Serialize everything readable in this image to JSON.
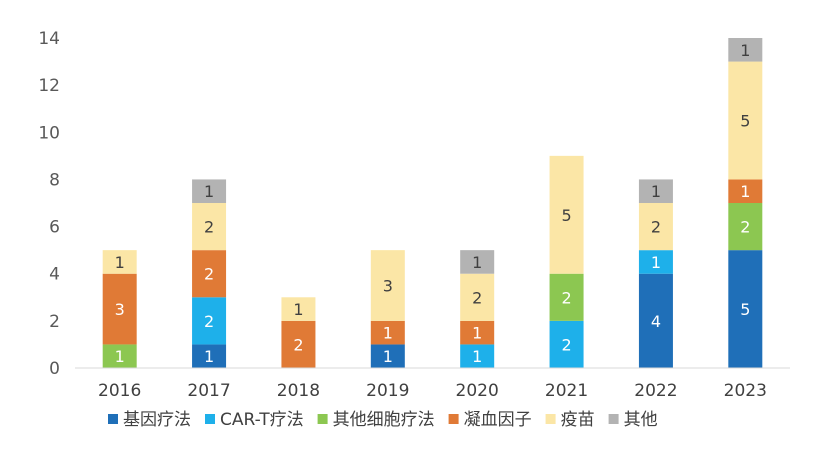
{
  "chart_data": {
    "type": "bar",
    "stacked": true,
    "categories": [
      "2016",
      "2017",
      "2018",
      "2019",
      "2020",
      "2021",
      "2022",
      "2023"
    ],
    "series": [
      {
        "name": "基因疗法",
        "color": "#1F6FB8",
        "values": [
          0,
          1,
          0,
          1,
          0,
          0,
          4,
          5
        ]
      },
      {
        "name": "CAR-T疗法",
        "color": "#1EB0EA",
        "values": [
          0,
          2,
          0,
          0,
          1,
          2,
          1,
          0
        ]
      },
      {
        "name": "其他细胞疗法",
        "color": "#8CC751",
        "values": [
          1,
          0,
          0,
          0,
          0,
          2,
          0,
          2
        ]
      },
      {
        "name": "凝血因子",
        "color": "#E07A36",
        "values": [
          3,
          2,
          2,
          1,
          1,
          0,
          0,
          1
        ]
      },
      {
        "name": "疫苗",
        "color": "#FBE6A6",
        "values": [
          1,
          2,
          1,
          3,
          2,
          5,
          2,
          5
        ]
      },
      {
        "name": "其他",
        "color": "#B3B3B3",
        "values": [
          0,
          1,
          0,
          0,
          1,
          0,
          1,
          1
        ]
      }
    ],
    "ylim": [
      0,
      14
    ],
    "yticks": [
      0,
      2,
      4,
      6,
      8,
      10,
      12,
      14
    ],
    "grid": false,
    "legend_position": "bottom",
    "data_labels": true
  }
}
